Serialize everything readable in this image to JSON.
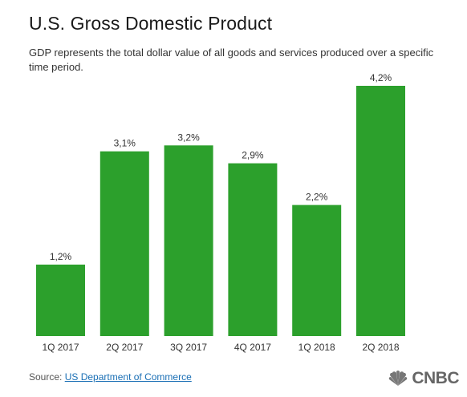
{
  "header": {
    "title": "U.S. Gross Domestic Product",
    "subtitle": "GDP represents the total dollar value of all goods and services produced over a specific time period."
  },
  "chart_data": {
    "type": "bar",
    "title": "U.S. Gross Domestic Product",
    "subtitle": "GDP represents the total dollar value of all goods and services produced over a specific time period.",
    "xlabel": "",
    "ylabel": "",
    "categories": [
      "1Q 2017",
      "2Q 2017",
      "3Q 2017",
      "4Q 2017",
      "1Q 2018",
      "2Q 2018"
    ],
    "values": [
      1.2,
      3.1,
      3.2,
      2.9,
      2.2,
      4.2
    ],
    "data_labels": [
      "1,2%",
      "3,1%",
      "3,2%",
      "2,9%",
      "2,2%",
      "4,2%"
    ],
    "ylim": [
      0,
      4.2
    ],
    "grid": false,
    "legend": "none",
    "bar_color": "#2ca02c"
  },
  "footer": {
    "source_prefix": "Source:",
    "source_link": "US Department of Commerce"
  },
  "logo": {
    "text": "CNBC",
    "icon": "peacock-icon"
  },
  "colors": {
    "bar": "#2ca02c",
    "link": "#1a6fb5",
    "logo": "#666666"
  }
}
